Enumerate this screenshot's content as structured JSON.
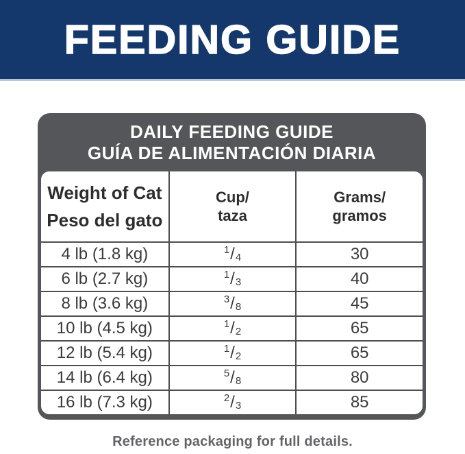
{
  "banner": {
    "title": "FEEDING GUIDE",
    "bg_color": "#14386B",
    "text_color": "#ffffff"
  },
  "guide": {
    "title_line1": "DAILY FEEDING GUIDE",
    "title_line2": "GUÍA DE ALIMENTACIÓN DIARIA",
    "box_color": "#555659"
  },
  "table": {
    "fraction_slash": "/",
    "headers": {
      "weight_line1": "Weight of Cat",
      "weight_line2": "Peso del gato",
      "cup_line1": "Cup/",
      "cup_line2": "taza",
      "grams_line1": "Grams/",
      "grams_line2": "gramos"
    },
    "rows": [
      {
        "weight": "4 lb (1.8 kg)",
        "cup": {
          "num": "1",
          "den": "4"
        },
        "grams": "30"
      },
      {
        "weight": "6 lb (2.7 kg)",
        "cup": {
          "num": "1",
          "den": "3"
        },
        "grams": "40"
      },
      {
        "weight": "8 lb (3.6 kg)",
        "cup": {
          "num": "3",
          "den": "8"
        },
        "grams": "45"
      },
      {
        "weight": "10 lb (4.5 kg)",
        "cup": {
          "num": "1",
          "den": "2"
        },
        "grams": "65"
      },
      {
        "weight": "12 lb (5.4 kg)",
        "cup": {
          "num": "1",
          "den": "2"
        },
        "grams": "65"
      },
      {
        "weight": "14 lb (6.4 kg)",
        "cup": {
          "num": "5",
          "den": "8"
        },
        "grams": "80"
      },
      {
        "weight": "16 lb (7.3 kg)",
        "cup": {
          "num": "2",
          "den": "3"
        },
        "grams": "85"
      }
    ]
  },
  "footer": {
    "note": "Reference packaging for full details."
  }
}
